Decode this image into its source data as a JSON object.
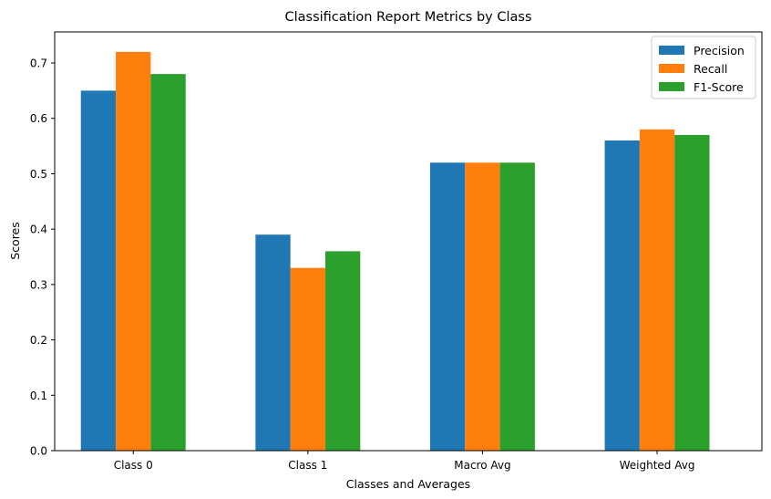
{
  "chart_data": {
    "type": "bar",
    "title": "Classification Report Metrics by Class",
    "xlabel": "Classes and Averages",
    "ylabel": "Scores",
    "categories": [
      "Class 0",
      "Class 1",
      "Macro Avg",
      "Weighted Avg"
    ],
    "ylim": [
      0,
      0.756
    ],
    "yticks": [
      0.0,
      0.1,
      0.2,
      0.3,
      0.4,
      0.5,
      0.6,
      0.7
    ],
    "ytick_labels": [
      "0.0",
      "0.1",
      "0.2",
      "0.3",
      "0.4",
      "0.5",
      "0.6",
      "0.7"
    ],
    "grid": false,
    "legend_position": "top-right",
    "series": [
      {
        "name": "Precision",
        "color": "#1f77b4",
        "values": [
          0.65,
          0.39,
          0.52,
          0.56
        ]
      },
      {
        "name": "Recall",
        "color": "#ff7f0e",
        "values": [
          0.72,
          0.33,
          0.52,
          0.58
        ]
      },
      {
        "name": "F1-Score",
        "color": "#2ca02c",
        "values": [
          0.68,
          0.36,
          0.52,
          0.57
        ]
      }
    ]
  }
}
